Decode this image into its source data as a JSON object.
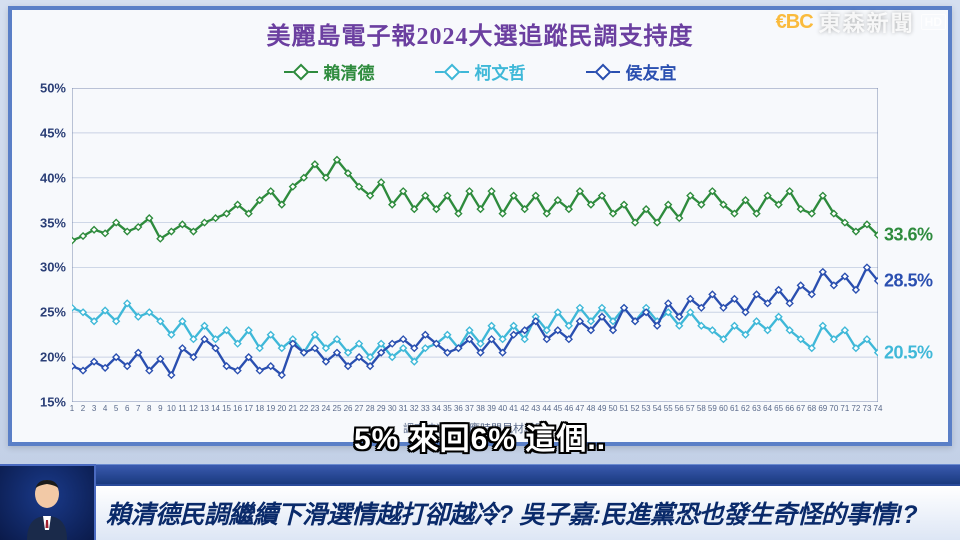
{
  "network": {
    "logo_left": "€BC",
    "logo_right": "東森新聞",
    "hd": "HD"
  },
  "chart": {
    "title": "美麗島電子報2024大選追蹤民調支持度",
    "type": "line",
    "ylim": [
      15,
      50
    ],
    "ytick_step": 5,
    "y_labels": [
      "15%",
      "20%",
      "25%",
      "30%",
      "35%",
      "40%",
      "45%",
      "50%"
    ],
    "x_count": 74,
    "x_caption": "調查波次（對應時間見材料圖）",
    "background": "#f7f9fc",
    "border": "#5a7fc7",
    "grid_color": "#c8d2e4",
    "title_color": "#6b3fa0",
    "legend": [
      {
        "label": "賴清德",
        "color": "#2e8b3d"
      },
      {
        "label": "柯文哲",
        "color": "#3fb8d8"
      },
      {
        "label": "侯友宜",
        "color": "#2a4fb0"
      }
    ],
    "series": [
      {
        "name": "lai",
        "color": "#2e8b3d",
        "end_value": 33.6,
        "end_label": "33.6%",
        "values": [
          33.0,
          33.5,
          34.2,
          33.8,
          35.0,
          34.0,
          34.5,
          35.5,
          33.2,
          34.0,
          34.8,
          34.0,
          35.0,
          35.5,
          36.0,
          37.0,
          36.0,
          37.5,
          38.5,
          37.0,
          39.0,
          40.0,
          41.5,
          40.0,
          42.0,
          40.5,
          39.0,
          38.0,
          39.5,
          37.0,
          38.5,
          36.5,
          38.0,
          36.5,
          38.0,
          36.0,
          38.5,
          36.5,
          38.5,
          36.0,
          38.0,
          36.5,
          38.0,
          36.0,
          37.5,
          36.5,
          38.5,
          37.0,
          38.0,
          36.0,
          37.0,
          35.0,
          36.5,
          35.0,
          37.0,
          35.5,
          38.0,
          37.0,
          38.5,
          37.0,
          36.0,
          37.5,
          36.0,
          38.0,
          37.0,
          38.5,
          36.5,
          36.0,
          38.0,
          36.0,
          35.0,
          34.0,
          34.8,
          33.6
        ]
      },
      {
        "name": "ko",
        "color": "#3fb8d8",
        "end_value": 20.5,
        "end_label": "20.5%",
        "values": [
          25.5,
          25.0,
          24.0,
          25.2,
          24.0,
          26.0,
          24.5,
          25.0,
          24.0,
          22.5,
          24.0,
          22.0,
          23.5,
          22.0,
          23.0,
          21.5,
          23.0,
          21.0,
          22.5,
          21.0,
          22.0,
          20.5,
          22.5,
          21.0,
          22.0,
          20.5,
          21.5,
          20.0,
          21.5,
          20.0,
          21.0,
          19.5,
          21.0,
          21.5,
          22.5,
          21.0,
          23.0,
          21.5,
          23.5,
          22.0,
          23.5,
          22.0,
          24.5,
          23.0,
          25.0,
          23.5,
          25.5,
          24.0,
          25.5,
          24.0,
          25.5,
          24.0,
          25.5,
          24.0,
          25.0,
          23.5,
          25.0,
          23.5,
          23.0,
          22.0,
          23.5,
          22.5,
          24.0,
          23.0,
          24.5,
          23.0,
          22.0,
          21.0,
          23.5,
          22.0,
          23.0,
          21.0,
          22.0,
          20.5
        ]
      },
      {
        "name": "hou",
        "color": "#2a4fb0",
        "end_value": 28.5,
        "end_label": "28.5%",
        "values": [
          19.0,
          18.5,
          19.5,
          18.8,
          20.0,
          19.0,
          20.5,
          18.5,
          19.8,
          18.0,
          21.0,
          20.0,
          22.0,
          21.0,
          19.0,
          18.5,
          20.0,
          18.5,
          19.0,
          18.0,
          21.5,
          20.5,
          21.0,
          19.5,
          20.5,
          19.0,
          20.0,
          19.0,
          20.5,
          21.5,
          22.0,
          21.0,
          22.5,
          21.5,
          20.5,
          21.0,
          22.0,
          20.5,
          22.0,
          20.5,
          22.5,
          23.0,
          24.0,
          22.0,
          23.0,
          22.0,
          24.0,
          23.0,
          24.5,
          23.0,
          25.5,
          24.0,
          25.0,
          23.5,
          26.0,
          24.5,
          26.5,
          25.5,
          27.0,
          25.5,
          26.5,
          25.0,
          27.0,
          26.0,
          27.5,
          26.0,
          28.0,
          27.0,
          29.5,
          28.0,
          29.0,
          27.5,
          30.0,
          28.5
        ]
      }
    ]
  },
  "subtitle": "5% 來回6% 這個..",
  "ticker": {
    "headline": "賴清德民調繼續下滑選情越打卻越冷? 吳子嘉:民進黨恐也發生奇怪的事情!?"
  }
}
